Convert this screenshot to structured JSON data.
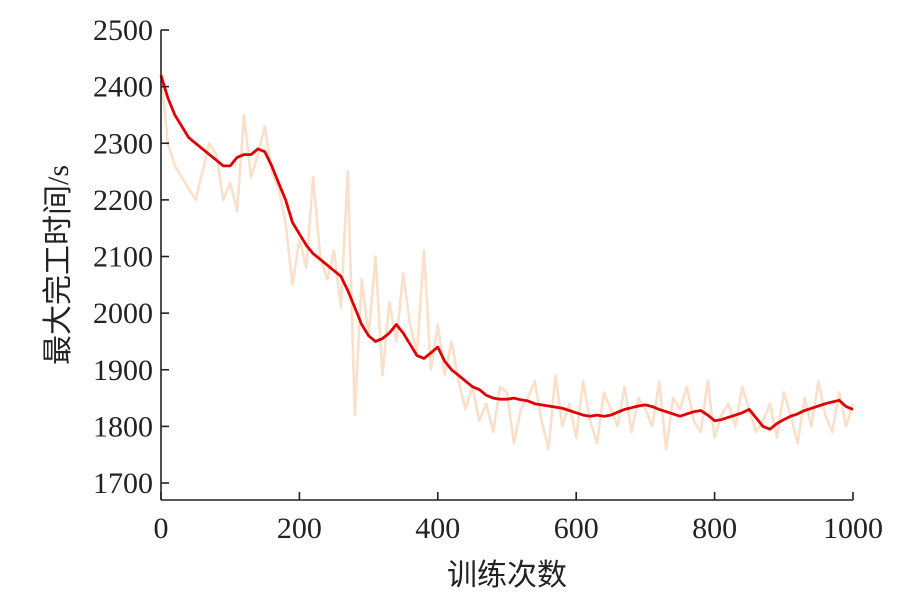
{
  "chart_data": {
    "type": "line",
    "title": "",
    "xlabel": "训练次数",
    "ylabel": "最大完工时间/s",
    "xlim": [
      0,
      1000
    ],
    "ylim": [
      1670,
      2500
    ],
    "x_ticks": [
      0,
      200,
      400,
      600,
      800,
      1000
    ],
    "y_ticks": [
      1700,
      1800,
      1900,
      2000,
      2100,
      2200,
      2300,
      2400,
      2500
    ],
    "grid": false,
    "legend": "none",
    "series": [
      {
        "role": "raw",
        "color": "#f6cba8",
        "x": [
          0,
          10,
          20,
          30,
          40,
          50,
          60,
          70,
          80,
          90,
          100,
          110,
          120,
          130,
          140,
          150,
          160,
          170,
          180,
          190,
          200,
          210,
          220,
          230,
          240,
          250,
          260,
          270,
          280,
          290,
          300,
          310,
          320,
          330,
          340,
          350,
          360,
          370,
          380,
          390,
          400,
          410,
          420,
          430,
          440,
          450,
          460,
          470,
          480,
          490,
          500,
          510,
          520,
          530,
          540,
          550,
          560,
          570,
          580,
          590,
          600,
          610,
          620,
          630,
          640,
          650,
          660,
          670,
          680,
          690,
          700,
          710,
          720,
          730,
          740,
          750,
          760,
          770,
          780,
          790,
          800,
          810,
          820,
          830,
          840,
          850,
          860,
          870,
          880,
          890,
          900,
          910,
          920,
          930,
          940,
          950,
          960,
          970,
          980,
          990,
          1000
        ],
        "y": [
          2420,
          2300,
          2260,
          2240,
          2220,
          2200,
          2250,
          2300,
          2280,
          2200,
          2230,
          2180,
          2350,
          2240,
          2280,
          2330,
          2250,
          2220,
          2160,
          2050,
          2130,
          2080,
          2240,
          2100,
          2060,
          2110,
          2010,
          2250,
          1820,
          2060,
          1960,
          2100,
          1890,
          2020,
          1950,
          2070,
          1980,
          1930,
          2110,
          1900,
          1980,
          1890,
          1950,
          1880,
          1830,
          1870,
          1810,
          1840,
          1790,
          1870,
          1860,
          1770,
          1830,
          1850,
          1880,
          1810,
          1760,
          1890,
          1800,
          1840,
          1780,
          1880,
          1810,
          1770,
          1860,
          1830,
          1800,
          1870,
          1790,
          1850,
          1830,
          1800,
          1880,
          1760,
          1850,
          1830,
          1870,
          1810,
          1790,
          1880,
          1780,
          1820,
          1840,
          1800,
          1870,
          1830,
          1790,
          1810,
          1840,
          1780,
          1860,
          1820,
          1770,
          1850,
          1800,
          1880,
          1820,
          1790,
          1860,
          1800,
          1840
        ]
      },
      {
        "role": "smoothed",
        "color": "#e00000",
        "x": [
          0,
          10,
          20,
          30,
          40,
          50,
          60,
          70,
          80,
          90,
          100,
          110,
          120,
          130,
          140,
          150,
          160,
          170,
          180,
          190,
          200,
          210,
          220,
          230,
          240,
          250,
          260,
          270,
          280,
          290,
          300,
          310,
          320,
          330,
          340,
          350,
          360,
          370,
          380,
          390,
          400,
          410,
          420,
          430,
          440,
          450,
          460,
          470,
          480,
          490,
          500,
          510,
          520,
          530,
          540,
          550,
          560,
          570,
          580,
          590,
          600,
          610,
          620,
          630,
          640,
          650,
          660,
          670,
          680,
          690,
          700,
          710,
          720,
          730,
          740,
          750,
          760,
          770,
          780,
          790,
          800,
          810,
          820,
          830,
          840,
          850,
          860,
          870,
          880,
          890,
          900,
          910,
          920,
          930,
          940,
          950,
          960,
          970,
          980,
          990,
          1000
        ],
        "y": [
          2420,
          2380,
          2350,
          2330,
          2310,
          2300,
          2290,
          2280,
          2270,
          2260,
          2260,
          2275,
          2280,
          2280,
          2290,
          2285,
          2260,
          2230,
          2200,
          2160,
          2140,
          2120,
          2105,
          2095,
          2085,
          2075,
          2065,
          2040,
          2010,
          1980,
          1960,
          1950,
          1955,
          1965,
          1980,
          1965,
          1945,
          1925,
          1920,
          1930,
          1940,
          1915,
          1900,
          1890,
          1880,
          1870,
          1865,
          1855,
          1850,
          1848,
          1848,
          1850,
          1847,
          1845,
          1840,
          1838,
          1836,
          1834,
          1832,
          1828,
          1824,
          1820,
          1818,
          1820,
          1818,
          1820,
          1825,
          1830,
          1833,
          1836,
          1838,
          1835,
          1830,
          1826,
          1822,
          1818,
          1822,
          1826,
          1828,
          1820,
          1810,
          1812,
          1816,
          1820,
          1824,
          1830,
          1815,
          1800,
          1795,
          1805,
          1812,
          1818,
          1822,
          1828,
          1832,
          1836,
          1840,
          1843,
          1846,
          1835,
          1830
        ]
      }
    ]
  }
}
